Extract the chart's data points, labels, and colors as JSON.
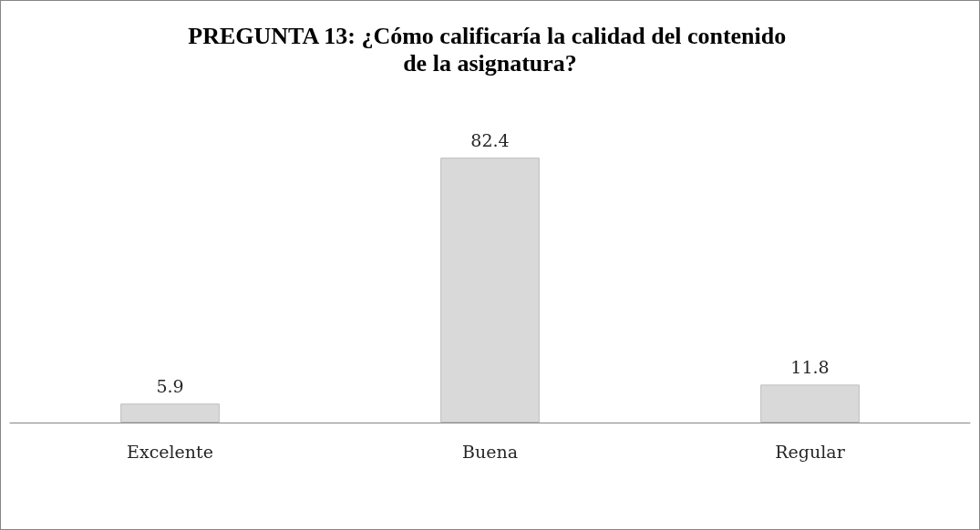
{
  "chart_data": {
    "type": "bar",
    "title": "PREGUNTA 13: ¿Cómo calificaría la calidad del contenido de la asignatura?",
    "categories": [
      "Excelente",
      "Buena",
      "Regular"
    ],
    "values": [
      5.9,
      82.4,
      11.8
    ],
    "color": "#d9d9d9",
    "data_labels": true,
    "grid": false
  }
}
